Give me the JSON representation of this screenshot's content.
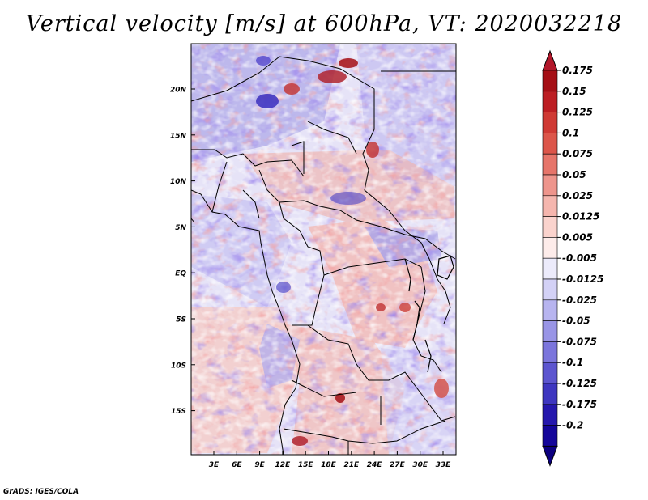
{
  "title": "Vertical velocity [m/s] at 600hPa, VT: 2020032218",
  "credit": "GrADS: IGES/COLA",
  "colors": {
    "frame": "#000000",
    "coast": "#000000"
  },
  "map": {
    "lat_labels": [
      "20N",
      "15N",
      "10N",
      "5N",
      "EQ",
      "5S",
      "10S",
      "15S"
    ],
    "lon_labels": [
      "3E",
      "6E",
      "9E",
      "12E",
      "15E",
      "18E",
      "21E",
      "24E",
      "27E",
      "30E",
      "33E"
    ]
  },
  "colorbar": {
    "labels": [
      "0.175",
      "0.15",
      "0.125",
      "0.1",
      "0.075",
      "0.05",
      "0.025",
      "0.0125",
      "0.005",
      "-0.005",
      "-0.0125",
      "-0.025",
      "-0.05",
      "-0.075",
      "-0.1",
      "-0.125",
      "-0.175",
      "-0.2"
    ],
    "top_color": "#b2182b",
    "colors": [
      "#a50f15",
      "#bc1e23",
      "#cf3a34",
      "#dc564a",
      "#e6756a",
      "#ee958c",
      "#f5b6ae",
      "#fad3cd",
      "#fdecea",
      "#ecebfb",
      "#d3d1f6",
      "#b7b4ef",
      "#9995e6",
      "#7b75dc",
      "#5c55cf",
      "#3e36c0",
      "#2517ad",
      "#14069a"
    ],
    "bottom_color": "#0c0080"
  }
}
